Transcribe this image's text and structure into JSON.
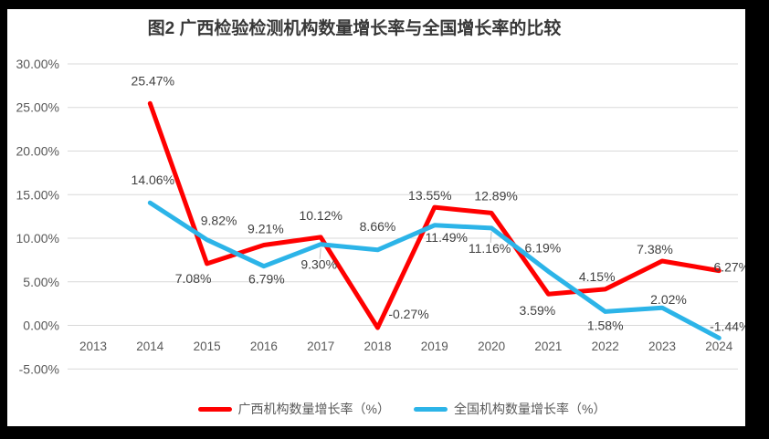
{
  "page": {
    "background": "#000000",
    "chart_background": "#FFFFFF"
  },
  "chart_data": {
    "type": "line",
    "title": "图2 广西检验检测机构数量增长率与全国增长率的比较",
    "categories": [
      "2013",
      "2014",
      "2015",
      "2016",
      "2017",
      "2018",
      "2019",
      "2020",
      "2021",
      "2022",
      "2023",
      "2024"
    ],
    "y_axis": {
      "tick_labels": [
        "30.00%",
        "25.00%",
        "20.00%",
        "15.00%",
        "10.00%",
        "5.00%",
        "0.00%",
        "-5.00%"
      ],
      "tick_values": [
        30,
        25,
        20,
        15,
        10,
        5,
        0,
        -5
      ],
      "min": -5,
      "max": 30
    },
    "grid": true,
    "legend_position": "bottom",
    "colors": {
      "grid": "#D9D9D9",
      "axis_text": "#595959",
      "label_text": "#404040",
      "title_text": "#383838",
      "leader_line": "#BFBFBF"
    },
    "series": [
      {
        "name": "广西机构数量增长率（%）",
        "color": "#FF0000",
        "values": [
          null,
          25.47,
          7.08,
          9.21,
          10.12,
          -0.27,
          13.55,
          12.89,
          3.59,
          4.15,
          7.38,
          6.27
        ],
        "labels": [
          null,
          "25.47%",
          "7.08%",
          "9.21%",
          "10.12%",
          "-0.27%",
          "13.55%",
          "12.89%",
          "3.59%",
          "4.15%",
          "7.38%",
          "6.27%"
        ],
        "label_offsets": [
          null,
          [
            3,
            -25
          ],
          [
            -15,
            16
          ],
          [
            2,
            -18
          ],
          [
            0,
            -24
          ],
          [
            34,
            -15
          ],
          [
            -5,
            -13
          ],
          [
            5,
            -19
          ],
          [
            -12,
            18
          ],
          [
            -9,
            -14
          ],
          [
            -8,
            -13
          ],
          [
            14,
            -4
          ]
        ]
      },
      {
        "name": "全国机构数量增长率（%）",
        "color": "#2CB4E8",
        "values": [
          null,
          14.06,
          9.82,
          6.79,
          9.3,
          8.66,
          11.49,
          11.16,
          6.19,
          1.58,
          2.02,
          -1.44
        ],
        "labels": [
          null,
          "14.06%",
          "9.82%",
          "6.79%",
          "9.30%",
          "8.66%",
          "11.49%",
          "11.16%",
          "6.19%",
          "1.58%",
          "2.02%",
          "-1.44%"
        ],
        "label_offsets": [
          null,
          [
            3,
            -25
          ],
          [
            13,
            -21
          ],
          [
            3,
            14
          ],
          [
            -2,
            22
          ],
          [
            0,
            -26
          ],
          [
            13,
            13
          ],
          [
            -2,
            22
          ],
          [
            -6,
            -26
          ],
          [
            0,
            15
          ],
          [
            7,
            -9
          ],
          [
            12,
            -13
          ]
        ]
      }
    ],
    "label_leaders": [
      {
        "series": 1,
        "index": 4
      },
      {
        "series": 1,
        "index": 7
      }
    ]
  }
}
